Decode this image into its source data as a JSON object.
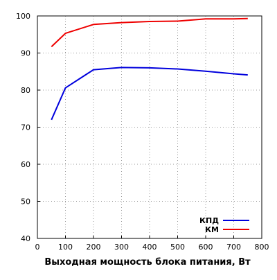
{
  "chart_data": {
    "type": "line",
    "title": "",
    "xlabel": "Выходная мощность блока питания, Вт",
    "ylabel": "",
    "xlim": [
      0,
      800
    ],
    "ylim": [
      40,
      100
    ],
    "x_ticks": [
      "0",
      "100",
      "200",
      "300",
      "400",
      "500",
      "600",
      "700",
      "800"
    ],
    "y_ticks": [
      "40",
      "50",
      "60",
      "70",
      "80",
      "90",
      "100"
    ],
    "grid": true,
    "legend_position": "bottom-right",
    "series": [
      {
        "name": "КПД",
        "color": "#0000dd",
        "x": [
          50,
          100,
          200,
          300,
          400,
          500,
          600,
          700,
          750
        ],
        "y": [
          72.0,
          80.6,
          85.5,
          86.1,
          86.0,
          85.7,
          85.1,
          84.4,
          84.1
        ]
      },
      {
        "name": "КМ",
        "color": "#ee0000",
        "x": [
          50,
          100,
          200,
          300,
          400,
          500,
          600,
          700,
          750
        ],
        "y": [
          91.7,
          95.3,
          97.7,
          98.2,
          98.5,
          98.6,
          99.2,
          99.2,
          99.3
        ]
      }
    ]
  }
}
